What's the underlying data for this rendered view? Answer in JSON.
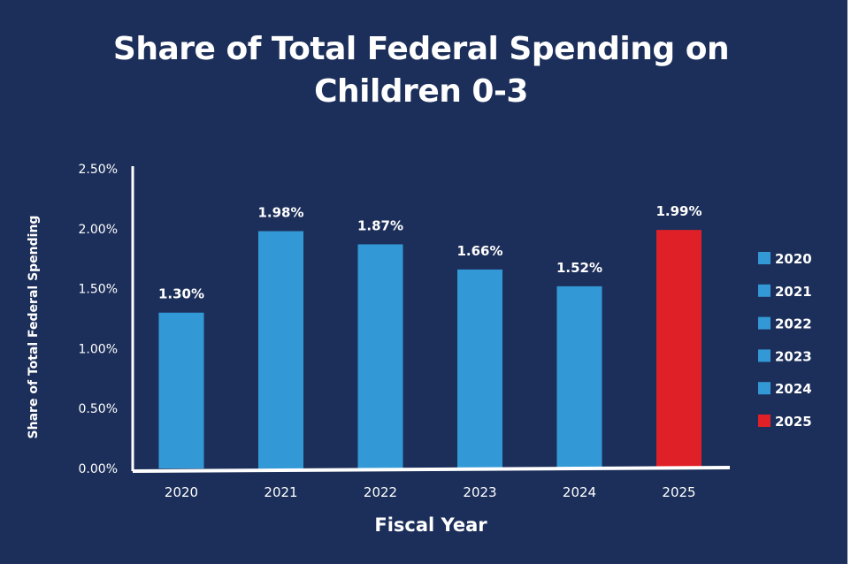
{
  "chart_data": {
    "type": "bar",
    "title_lines": [
      "Share of Total Federal Spending on",
      "Children 0-3"
    ],
    "xlabel": "Fiscal Year",
    "ylabel": "Share of Total Federal Spending",
    "categories": [
      "2020",
      "2021",
      "2022",
      "2023",
      "2024",
      "2025"
    ],
    "values": [
      1.3,
      1.98,
      1.87,
      1.66,
      1.52,
      1.99
    ],
    "data_labels": [
      "1.30%",
      "1.98%",
      "1.87%",
      "1.66%",
      "1.52%",
      "1.99%"
    ],
    "ylim": [
      0,
      2.5
    ],
    "yticks": [
      0,
      0.5,
      1.0,
      1.5,
      2.0,
      2.5
    ],
    "ytick_labels": [
      "0.00%",
      "0.50%",
      "1.00%",
      "1.50%",
      "2.00%",
      "2.50%"
    ],
    "grid": false,
    "legend_position": "right",
    "legend": [
      "2020",
      "2021",
      "2022",
      "2023",
      "2024",
      "2025"
    ],
    "colors": [
      "#3399d6",
      "#3399d6",
      "#3399d6",
      "#3399d6",
      "#3399d6",
      "#e02027"
    ]
  },
  "colors": {
    "background": "#1c2f5a",
    "text": "#ffffff",
    "axis": "#ffffff"
  }
}
